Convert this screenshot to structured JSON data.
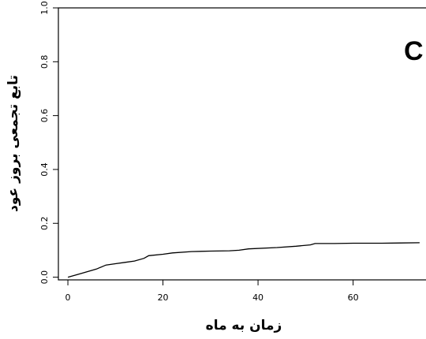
{
  "chart_data": {
    "type": "line",
    "panel_label": "C",
    "xlabel": "زمان به ماه",
    "ylabel": "تابع تجمعی بروز عود",
    "xlim": [
      -2,
      76
    ],
    "ylim": [
      -0.01,
      1.0
    ],
    "x_ticks": [
      0,
      20,
      40,
      60
    ],
    "x_tick_labels": [
      "0",
      "20",
      "40",
      "60"
    ],
    "y_ticks": [
      0.0,
      0.2,
      0.4,
      0.6,
      0.8,
      1.0
    ],
    "y_tick_labels": [
      "0.0",
      "0.2",
      "0.4",
      "0.6",
      "0.8",
      "1.0"
    ],
    "grid": false,
    "legend": "none",
    "series": [
      {
        "color": "#000000",
        "x": [
          0,
          2,
          4,
          6,
          8,
          10,
          12,
          14,
          16,
          17,
          20,
          22,
          26,
          30,
          34,
          36,
          38,
          44,
          48,
          51,
          52,
          56,
          60,
          66,
          70,
          74
        ],
        "y": [
          0.0,
          0.01,
          0.02,
          0.03,
          0.045,
          0.05,
          0.055,
          0.06,
          0.07,
          0.08,
          0.085,
          0.09,
          0.095,
          0.097,
          0.098,
          0.1,
          0.105,
          0.11,
          0.115,
          0.12,
          0.125,
          0.125,
          0.126,
          0.126,
          0.127,
          0.128
        ]
      }
    ]
  }
}
